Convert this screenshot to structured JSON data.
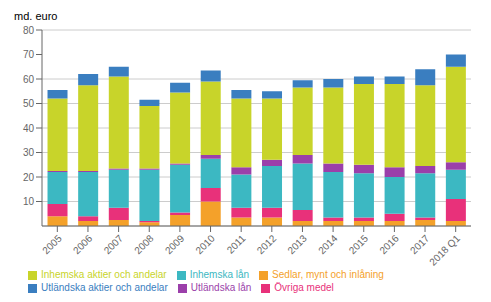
{
  "chart_data": {
    "type": "bar",
    "stacked": true,
    "ylabel": "md. euro",
    "categories": [
      "2005",
      "2006",
      "2007",
      "2008",
      "2009",
      "2010",
      "2011",
      "2012",
      "2013",
      "2014",
      "2015",
      "2016",
      "2017",
      "2018 Q1"
    ],
    "series": [
      {
        "name": "Sedlar, mynt och inlåning",
        "color": "#f4a12a",
        "values": [
          4.0,
          2.0,
          2.5,
          1.5,
          4.5,
          10.0,
          3.5,
          3.5,
          2.0,
          2.0,
          2.0,
          2.0,
          2.5,
          2.0
        ]
      },
      {
        "name": "Övriga medel",
        "color": "#e8317a",
        "values": [
          5.0,
          2.0,
          5.0,
          0.5,
          1.0,
          5.5,
          4.0,
          4.0,
          4.5,
          1.5,
          1.5,
          3.0,
          1.0,
          9.0
        ]
      },
      {
        "name": "Inhemska lån",
        "color": "#3cb8c2",
        "values": [
          13.0,
          18.0,
          15.5,
          21.0,
          19.5,
          12.0,
          13.5,
          17.0,
          19.0,
          18.5,
          18.0,
          15.0,
          18.0,
          12.0
        ]
      },
      {
        "name": "Utländska lån",
        "color": "#9b3faa",
        "values": [
          0.5,
          0.5,
          0.5,
          0.5,
          0.5,
          1.5,
          3.0,
          2.5,
          3.5,
          3.5,
          3.5,
          4.0,
          3.0,
          3.0
        ]
      },
      {
        "name": "Inhemska aktier och andelar",
        "color": "#c8d42a",
        "values": [
          29.5,
          35.0,
          37.5,
          25.5,
          29.0,
          30.0,
          28.0,
          25.0,
          27.5,
          31.0,
          33.0,
          34.0,
          33.0,
          39.0
        ]
      },
      {
        "name": "Utländska aktier och andelar",
        "color": "#3a7ec0",
        "values": [
          3.5,
          4.5,
          4.0,
          2.5,
          4.0,
          4.5,
          3.5,
          3.0,
          3.0,
          3.5,
          3.0,
          3.0,
          6.5,
          5.0
        ]
      }
    ],
    "ylim": [
      0,
      80
    ],
    "yticks": [
      10,
      20,
      30,
      40,
      50,
      60,
      70,
      80
    ],
    "grid": true,
    "legend": "bottom"
  }
}
